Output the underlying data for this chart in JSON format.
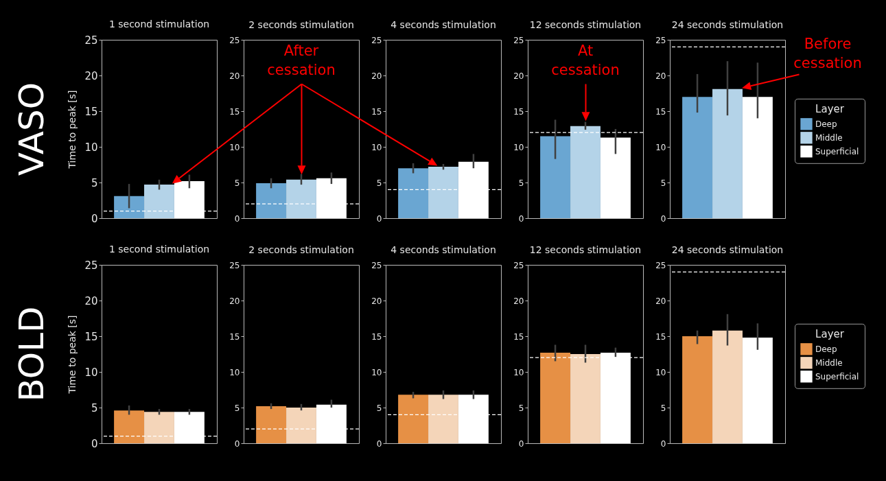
{
  "chart_data": [
    {
      "type": "bar",
      "title": "1 second stimulation",
      "ylabel": "Time to peak [s]",
      "categories": [
        null
      ],
      "ylim": [
        0,
        25
      ],
      "yticks": [
        0,
        5,
        10,
        15,
        20,
        25
      ],
      "tick_labels": "y",
      "grid": false,
      "annotations": [
        "VASO"
      ],
      "ref_lines": [
        {
          "axis": "y",
          "value": 1,
          "color": "#ffffff",
          "line_style": "dashed"
        }
      ],
      "series": [
        {
          "color": "#6aa6d2",
          "values": [
            3.1
          ],
          "errors": [
            [
              1.4,
              4.8
            ]
          ]
        },
        {
          "color": "#b4d3e8",
          "values": [
            4.7
          ],
          "errors": [
            [
              4.0,
              5.4
            ]
          ]
        },
        {
          "color": "#ffffff",
          "values": [
            5.2
          ],
          "errors": [
            [
              4.2,
              6.1
            ]
          ]
        }
      ]
    },
    {
      "type": "bar",
      "title": "2 seconds stimulation",
      "categories": [
        null
      ],
      "ylim": [
        0,
        25
      ],
      "yticks": [
        0,
        5,
        10,
        15,
        20,
        25
      ],
      "tick_labels": "y",
      "grid": false,
      "annotations": [
        "After cessation"
      ],
      "ref_lines": [
        {
          "axis": "y",
          "value": 2,
          "color": "#ffffff",
          "line_style": "dashed"
        }
      ],
      "series": [
        {
          "color": "#6aa6d2",
          "values": [
            4.9
          ],
          "errors": [
            [
              4.2,
              5.6
            ]
          ]
        },
        {
          "color": "#b4d3e8",
          "values": [
            5.4
          ],
          "errors": [
            [
              4.7,
              6.2
            ]
          ]
        },
        {
          "color": "#ffffff",
          "values": [
            5.6
          ],
          "errors": [
            [
              4.8,
              6.4
            ]
          ]
        }
      ]
    },
    {
      "type": "bar",
      "title": "4 seconds stimulation",
      "categories": [
        null
      ],
      "ylim": [
        0,
        25
      ],
      "yticks": [
        0,
        5,
        10,
        15,
        20,
        25
      ],
      "tick_labels": "y",
      "grid": false,
      "ref_lines": [
        {
          "axis": "y",
          "value": 4,
          "color": "#ffffff",
          "line_style": "dashed"
        }
      ],
      "series": [
        {
          "color": "#6aa6d2",
          "values": [
            7.0
          ],
          "errors": [
            [
              6.3,
              7.7
            ]
          ]
        },
        {
          "color": "#b4d3e8",
          "values": [
            7.2
          ],
          "errors": [
            [
              6.8,
              7.6
            ]
          ]
        },
        {
          "color": "#ffffff",
          "values": [
            7.9
          ],
          "errors": [
            [
              7.0,
              9.0
            ]
          ]
        }
      ]
    },
    {
      "type": "bar",
      "title": "12 seconds stimulation",
      "categories": [
        null
      ],
      "ylim": [
        0,
        25
      ],
      "yticks": [
        0,
        5,
        10,
        15,
        20,
        25
      ],
      "tick_labels": "y",
      "grid": false,
      "annotations": [
        "At cessation"
      ],
      "ref_lines": [
        {
          "axis": "y",
          "value": 12,
          "color": "#ffffff",
          "line_style": "dashed"
        }
      ],
      "series": [
        {
          "color": "#6aa6d2",
          "values": [
            11.5
          ],
          "errors": [
            [
              8.3,
              13.8
            ]
          ]
        },
        {
          "color": "#b4d3e8",
          "values": [
            12.9
          ],
          "errors": [
            [
              12.4,
              13.5
            ]
          ]
        },
        {
          "color": "#ffffff",
          "values": [
            11.3
          ],
          "errors": [
            [
              9.0,
              12.5
            ]
          ]
        }
      ]
    },
    {
      "type": "bar",
      "title": "24 seconds stimulation",
      "categories": [
        null
      ],
      "ylim": [
        0,
        25
      ],
      "yticks": [
        0,
        5,
        10,
        15,
        20,
        25
      ],
      "tick_labels": "y",
      "grid": false,
      "legend": "right",
      "legend_title": "Layer",
      "annotations": [
        "Before cessation"
      ],
      "ref_lines": [
        {
          "axis": "y",
          "value": 24,
          "color": "#ffffff",
          "line_style": "dashed"
        }
      ],
      "series": [
        {
          "name": "Deep",
          "color": "#6aa6d2",
          "values": [
            17.0
          ],
          "errors": [
            [
              14.8,
              20.2
            ]
          ]
        },
        {
          "name": "Middle",
          "color": "#b4d3e8",
          "values": [
            18.1
          ],
          "errors": [
            [
              14.4,
              22.0
            ]
          ]
        },
        {
          "name": "Superficial",
          "color": "#ffffff",
          "values": [
            17.0
          ],
          "errors": [
            [
              14.0,
              21.8
            ]
          ]
        }
      ]
    },
    {
      "type": "bar",
      "title": "1 second stimulation",
      "ylabel": "Time to peak [s]",
      "categories": [
        null
      ],
      "ylim": [
        0,
        25
      ],
      "yticks": [
        0,
        5,
        10,
        15,
        20,
        25
      ],
      "tick_labels": "y",
      "grid": false,
      "annotations": [
        "BOLD"
      ],
      "ref_lines": [
        {
          "axis": "y",
          "value": 1,
          "color": "#ffffff",
          "line_style": "dashed"
        }
      ],
      "series": [
        {
          "color": "#e69045",
          "values": [
            4.6
          ],
          "errors": [
            [
              4.0,
              5.3
            ]
          ]
        },
        {
          "color": "#f4d5b9",
          "values": [
            4.4
          ],
          "errors": [
            [
              4.0,
              4.8
            ]
          ]
        },
        {
          "color": "#ffffff",
          "values": [
            4.4
          ],
          "errors": [
            [
              4.0,
              4.8
            ]
          ]
        }
      ]
    },
    {
      "type": "bar",
      "title": "2 seconds stimulation",
      "categories": [
        null
      ],
      "ylim": [
        0,
        25
      ],
      "yticks": [
        0,
        5,
        10,
        15,
        20,
        25
      ],
      "tick_labels": "y",
      "grid": false,
      "ref_lines": [
        {
          "axis": "y",
          "value": 2,
          "color": "#ffffff",
          "line_style": "dashed"
        }
      ],
      "series": [
        {
          "color": "#e69045",
          "values": [
            5.2
          ],
          "errors": [
            [
              4.8,
              5.6
            ]
          ]
        },
        {
          "color": "#f4d5b9",
          "values": [
            5.0
          ],
          "errors": [
            [
              4.6,
              5.5
            ]
          ]
        },
        {
          "color": "#ffffff",
          "values": [
            5.4
          ],
          "errors": [
            [
              5.0,
              6.1
            ]
          ]
        }
      ]
    },
    {
      "type": "bar",
      "title": "4 seconds stimulation",
      "categories": [
        null
      ],
      "ylim": [
        0,
        25
      ],
      "yticks": [
        0,
        5,
        10,
        15,
        20,
        25
      ],
      "tick_labels": "y",
      "grid": false,
      "ref_lines": [
        {
          "axis": "y",
          "value": 4,
          "color": "#ffffff",
          "line_style": "dashed"
        }
      ],
      "series": [
        {
          "color": "#e69045",
          "values": [
            6.8
          ],
          "errors": [
            [
              6.3,
              7.2
            ]
          ]
        },
        {
          "color": "#f4d5b9",
          "values": [
            6.8
          ],
          "errors": [
            [
              6.2,
              7.4
            ]
          ]
        },
        {
          "color": "#ffffff",
          "values": [
            6.8
          ],
          "errors": [
            [
              6.2,
              7.4
            ]
          ]
        }
      ]
    },
    {
      "type": "bar",
      "title": "12 seconds stimulation",
      "categories": [
        null
      ],
      "ylim": [
        0,
        25
      ],
      "yticks": [
        0,
        5,
        10,
        15,
        20,
        25
      ],
      "tick_labels": "y",
      "grid": false,
      "ref_lines": [
        {
          "axis": "y",
          "value": 12,
          "color": "#ffffff",
          "line_style": "dashed"
        }
      ],
      "series": [
        {
          "color": "#e69045",
          "values": [
            12.7
          ],
          "errors": [
            [
              11.5,
              13.8
            ]
          ]
        },
        {
          "color": "#f4d5b9",
          "values": [
            12.5
          ],
          "errors": [
            [
              11.3,
              13.8
            ]
          ]
        },
        {
          "color": "#ffffff",
          "values": [
            12.7
          ],
          "errors": [
            [
              12.1,
              13.4
            ]
          ]
        }
      ]
    },
    {
      "type": "bar",
      "title": "24 seconds stimulation",
      "categories": [
        null
      ],
      "ylim": [
        0,
        25
      ],
      "yticks": [
        0,
        5,
        10,
        15,
        20,
        25
      ],
      "tick_labels": "y",
      "grid": false,
      "legend": "right",
      "legend_title": "Layer",
      "ref_lines": [
        {
          "axis": "y",
          "value": 24,
          "color": "#ffffff",
          "line_style": "dashed"
        }
      ],
      "series": [
        {
          "name": "Deep",
          "color": "#e69045",
          "values": [
            15.0
          ],
          "errors": [
            [
              13.9,
              15.8
            ]
          ]
        },
        {
          "name": "Middle",
          "color": "#f4d5b9",
          "values": [
            15.8
          ],
          "errors": [
            [
              13.7,
              18.1
            ]
          ]
        },
        {
          "name": "Superficial",
          "color": "#ffffff",
          "values": [
            14.8
          ],
          "errors": [
            [
              13.1,
              16.8
            ]
          ]
        }
      ]
    }
  ]
}
